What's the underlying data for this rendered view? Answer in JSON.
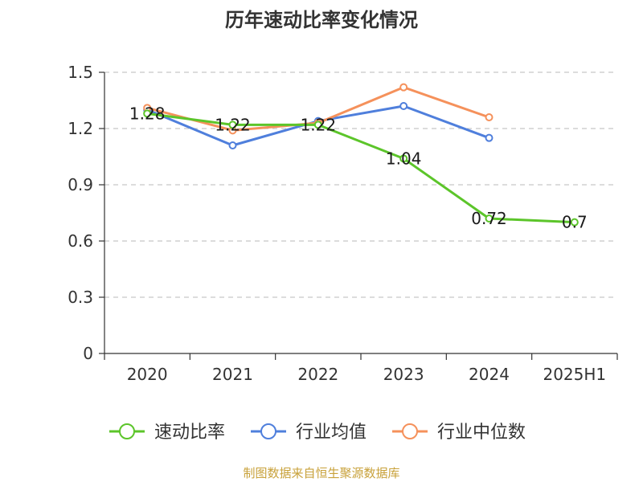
{
  "chart_data": {
    "type": "line",
    "title": "历年速动比率变化情况",
    "categories": [
      "2020",
      "2021",
      "2022",
      "2023",
      "2024",
      "2025H1"
    ],
    "y_ticks": [
      "0",
      "0.3",
      "0.6",
      "0.9",
      "1.2",
      "1.5"
    ],
    "ylim": [
      0,
      1.5
    ],
    "grid": true,
    "legend_position": "bottom",
    "series": [
      {
        "name": "速动比率",
        "color": "#5cc52a",
        "values": [
          1.28,
          1.22,
          1.22,
          1.04,
          0.72,
          0.7
        ],
        "labels": [
          "1.28",
          "1.22",
          "1.22",
          "1.04",
          "0.72",
          "0.7"
        ]
      },
      {
        "name": "行业均值",
        "color": "#4f7fdc",
        "values": [
          1.3,
          1.11,
          1.24,
          1.32,
          1.15,
          null
        ]
      },
      {
        "name": "行业中位数",
        "color": "#f5915b",
        "values": [
          1.31,
          1.19,
          1.23,
          1.42,
          1.26,
          null
        ]
      }
    ]
  },
  "source": "制图数据来自恒生聚源数据库"
}
